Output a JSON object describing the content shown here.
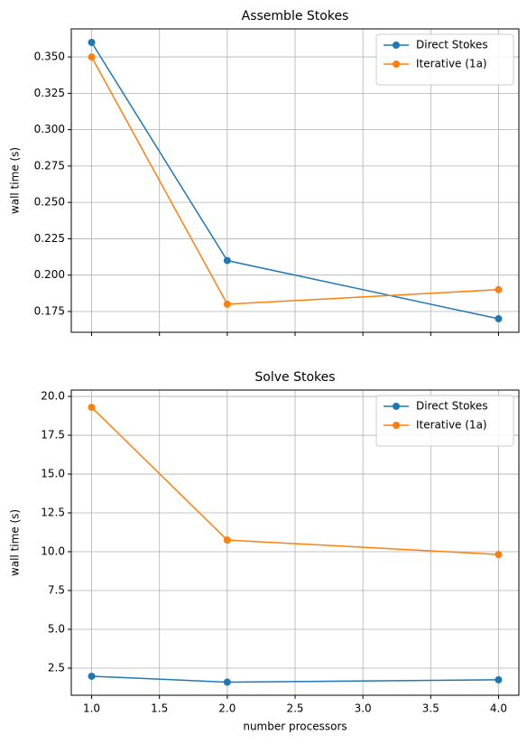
{
  "chart_data": [
    {
      "type": "line",
      "title": "Assemble Stokes",
      "ylabel": "wall time (s)",
      "x": [
        1,
        2,
        4
      ],
      "series": [
        {
          "name": "Direct Stokes",
          "color": "#1f77b4",
          "values": [
            0.36,
            0.21,
            0.17
          ]
        },
        {
          "name": "Iterative (1a)",
          "color": "#ff7f0e",
          "values": [
            0.35,
            0.18,
            0.19
          ]
        }
      ],
      "xlim": [
        0.85,
        4.15
      ],
      "xticks": [
        1,
        1.5,
        2,
        2.5,
        3,
        3.5,
        4
      ],
      "show_xtick_labels": false,
      "ylim": [
        0.1607,
        0.3693
      ],
      "yticks": [
        {
          "value": 0.175,
          "label": "0.175"
        },
        {
          "value": 0.2,
          "label": "0.200"
        },
        {
          "value": 0.225,
          "label": "0.225"
        },
        {
          "value": 0.25,
          "label": "0.250"
        },
        {
          "value": 0.275,
          "label": "0.275"
        },
        {
          "value": 0.3,
          "label": "0.300"
        },
        {
          "value": 0.325,
          "label": "0.325"
        },
        {
          "value": 0.35,
          "label": "0.350"
        }
      ],
      "grid": true,
      "legend": "upper-right"
    },
    {
      "type": "line",
      "title": "Solve Stokes",
      "ylabel": "wall time (s)",
      "xlabel": "number processors",
      "x": [
        1,
        2,
        4
      ],
      "series": [
        {
          "name": "Direct Stokes",
          "color": "#1f77b4",
          "values": [
            1.98,
            1.6,
            1.75
          ]
        },
        {
          "name": "Iterative (1a)",
          "color": "#ff7f0e",
          "values": [
            19.3,
            10.75,
            9.82
          ]
        }
      ],
      "xlim": [
        0.85,
        4.15
      ],
      "xticks": [
        {
          "value": 1,
          "label": "1.0"
        },
        1.5,
        {
          "value": 2,
          "label": "2.0"
        },
        2.5,
        {
          "value": 3,
          "label": "3.0"
        },
        3.5,
        {
          "value": 4,
          "label": "4.0"
        }
      ],
      "show_xtick_labels": true,
      "ylim": [
        0.756,
        20.41
      ],
      "yticks": [
        2.5,
        {
          "value": 5,
          "label": "5.0"
        },
        7.5,
        {
          "value": 10,
          "label": "10.0"
        },
        12.5,
        {
          "value": 15,
          "label": "15.0"
        },
        17.5,
        {
          "value": 20,
          "label": "20.0"
        }
      ],
      "grid": true,
      "legend": "upper-right"
    }
  ]
}
